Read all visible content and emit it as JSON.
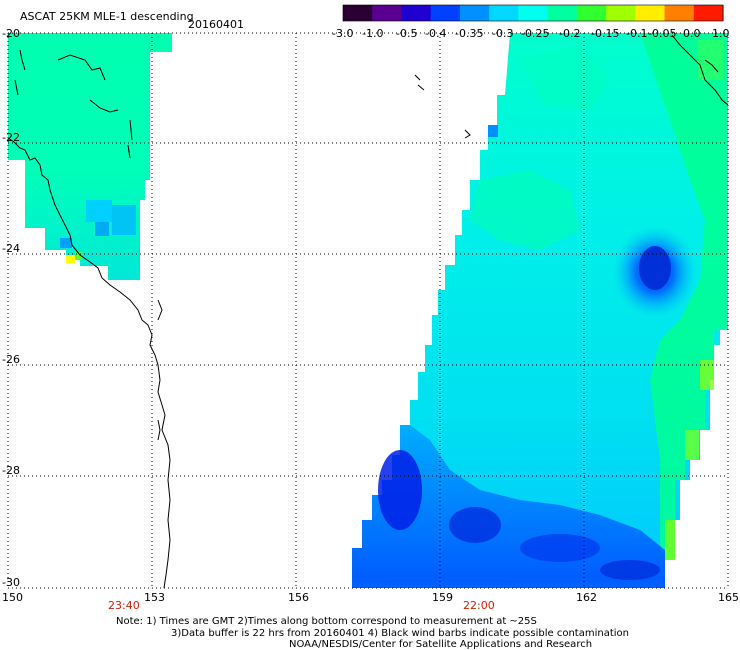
{
  "title": {
    "product": "ASCAT 25KM MLE-1 descending",
    "date": "20160401"
  },
  "colorbar": {
    "labels": [
      "-3.0",
      "-1.0",
      "-0.5",
      "-0.4",
      "-0.35",
      "-0.3",
      "-0.25",
      "-0.2",
      "-0.15",
      "-0.1",
      "-0.05",
      "0.0",
      "1.0"
    ],
    "colors": [
      "#2a0033",
      "#5a0090",
      "#2000d0",
      "#0040ff",
      "#0090ff",
      "#00d8ff",
      "#00ffee",
      "#00ffa0",
      "#30ff30",
      "#a0ff00",
      "#ffee00",
      "#ff8000",
      "#ff1a00"
    ]
  },
  "axes": {
    "lat_labels": [
      "-20",
      "-22",
      "-24",
      "-26",
      "-28",
      "-30"
    ],
    "lon_labels": [
      "150",
      "153",
      "156",
      "159",
      "162",
      "165"
    ],
    "lat_range": [
      -30,
      -20
    ],
    "lon_range": [
      150,
      165
    ],
    "grid": "dotted"
  },
  "swath_times": [
    {
      "time": "23:40",
      "lon": 153
    },
    {
      "time": "22:00",
      "lon": 160
    }
  ],
  "notes": [
    "Note: 1) Times are GMT 2)Times along bottom correspond to measurement at ~25S",
    "3)Data buffer is 22 hrs from 20160401 4) Black wind barbs indicate possible contamination",
    "NOAA/NESDIS/Center for Satellite Applications and Research"
  ]
}
